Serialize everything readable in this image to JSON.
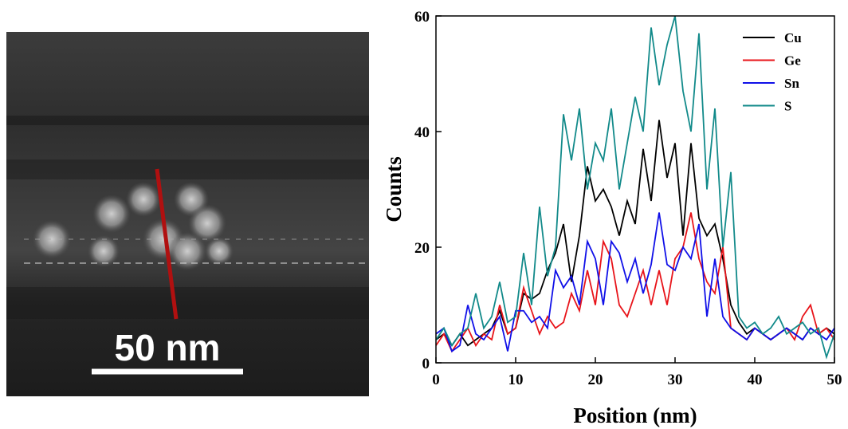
{
  "image": {
    "scale_bar_label": "50 nm"
  },
  "chart_data": {
    "type": "line",
    "xlabel": "Position (nm)",
    "ylabel": "Counts",
    "x": [
      0,
      1,
      2,
      3,
      4,
      5,
      6,
      7,
      8,
      9,
      10,
      11,
      12,
      13,
      14,
      15,
      16,
      17,
      18,
      19,
      20,
      21,
      22,
      23,
      24,
      25,
      26,
      27,
      28,
      29,
      30,
      31,
      32,
      33,
      34,
      35,
      36,
      37,
      38,
      39,
      40,
      41,
      42,
      43,
      44,
      45,
      46,
      47,
      48,
      49,
      50
    ],
    "series": [
      {
        "name": "Cu",
        "color": "#000000",
        "values": [
          4,
          5,
          3,
          5,
          3,
          4,
          5,
          6,
          9,
          5,
          6,
          12,
          11,
          12,
          16,
          19,
          24,
          14,
          22,
          34,
          28,
          30,
          27,
          22,
          28,
          24,
          37,
          28,
          42,
          32,
          38,
          22,
          38,
          25,
          22,
          24,
          18,
          10,
          7,
          5,
          6,
          5,
          4,
          5,
          6,
          5,
          4,
          6,
          5,
          6,
          5
        ]
      },
      {
        "name": "Ge",
        "color": "#e8141a",
        "values": [
          3,
          5,
          2,
          4,
          6,
          3,
          5,
          4,
          10,
          5,
          6,
          13,
          9,
          5,
          8,
          6,
          7,
          12,
          9,
          16,
          10,
          21,
          18,
          10,
          8,
          12,
          16,
          10,
          16,
          10,
          18,
          20,
          26,
          18,
          14,
          12,
          20,
          6,
          5,
          4,
          6,
          5,
          4,
          5,
          6,
          4,
          8,
          10,
          5,
          6,
          4
        ]
      },
      {
        "name": "Sn",
        "color": "#1010e8",
        "values": [
          5,
          6,
          2,
          3,
          10,
          5,
          4,
          6,
          8,
          2,
          9,
          9,
          7,
          8,
          6,
          16,
          13,
          15,
          10,
          21,
          18,
          10,
          21,
          19,
          14,
          18,
          12,
          17,
          26,
          17,
          16,
          20,
          18,
          24,
          8,
          18,
          8,
          6,
          5,
          4,
          6,
          5,
          4,
          5,
          6,
          5,
          4,
          6,
          5,
          4,
          6
        ]
      },
      {
        "name": "S",
        "color": "#128a8a",
        "values": [
          4,
          6,
          3,
          5,
          6,
          12,
          6,
          8,
          14,
          7,
          8,
          19,
          10,
          27,
          15,
          20,
          43,
          35,
          44,
          30,
          38,
          35,
          44,
          30,
          38,
          46,
          40,
          58,
          48,
          55,
          60,
          47,
          40,
          57,
          30,
          44,
          20,
          33,
          8,
          6,
          7,
          5,
          6,
          8,
          5,
          6,
          7,
          5,
          6,
          1,
          5
        ]
      }
    ],
    "xlim": [
      0,
      50
    ],
    "xticks": [
      0,
      10,
      20,
      30,
      40,
      50
    ],
    "ylim": [
      0,
      60
    ],
    "yticks": [
      0,
      20,
      40,
      60
    ],
    "legend": "upper-right"
  }
}
